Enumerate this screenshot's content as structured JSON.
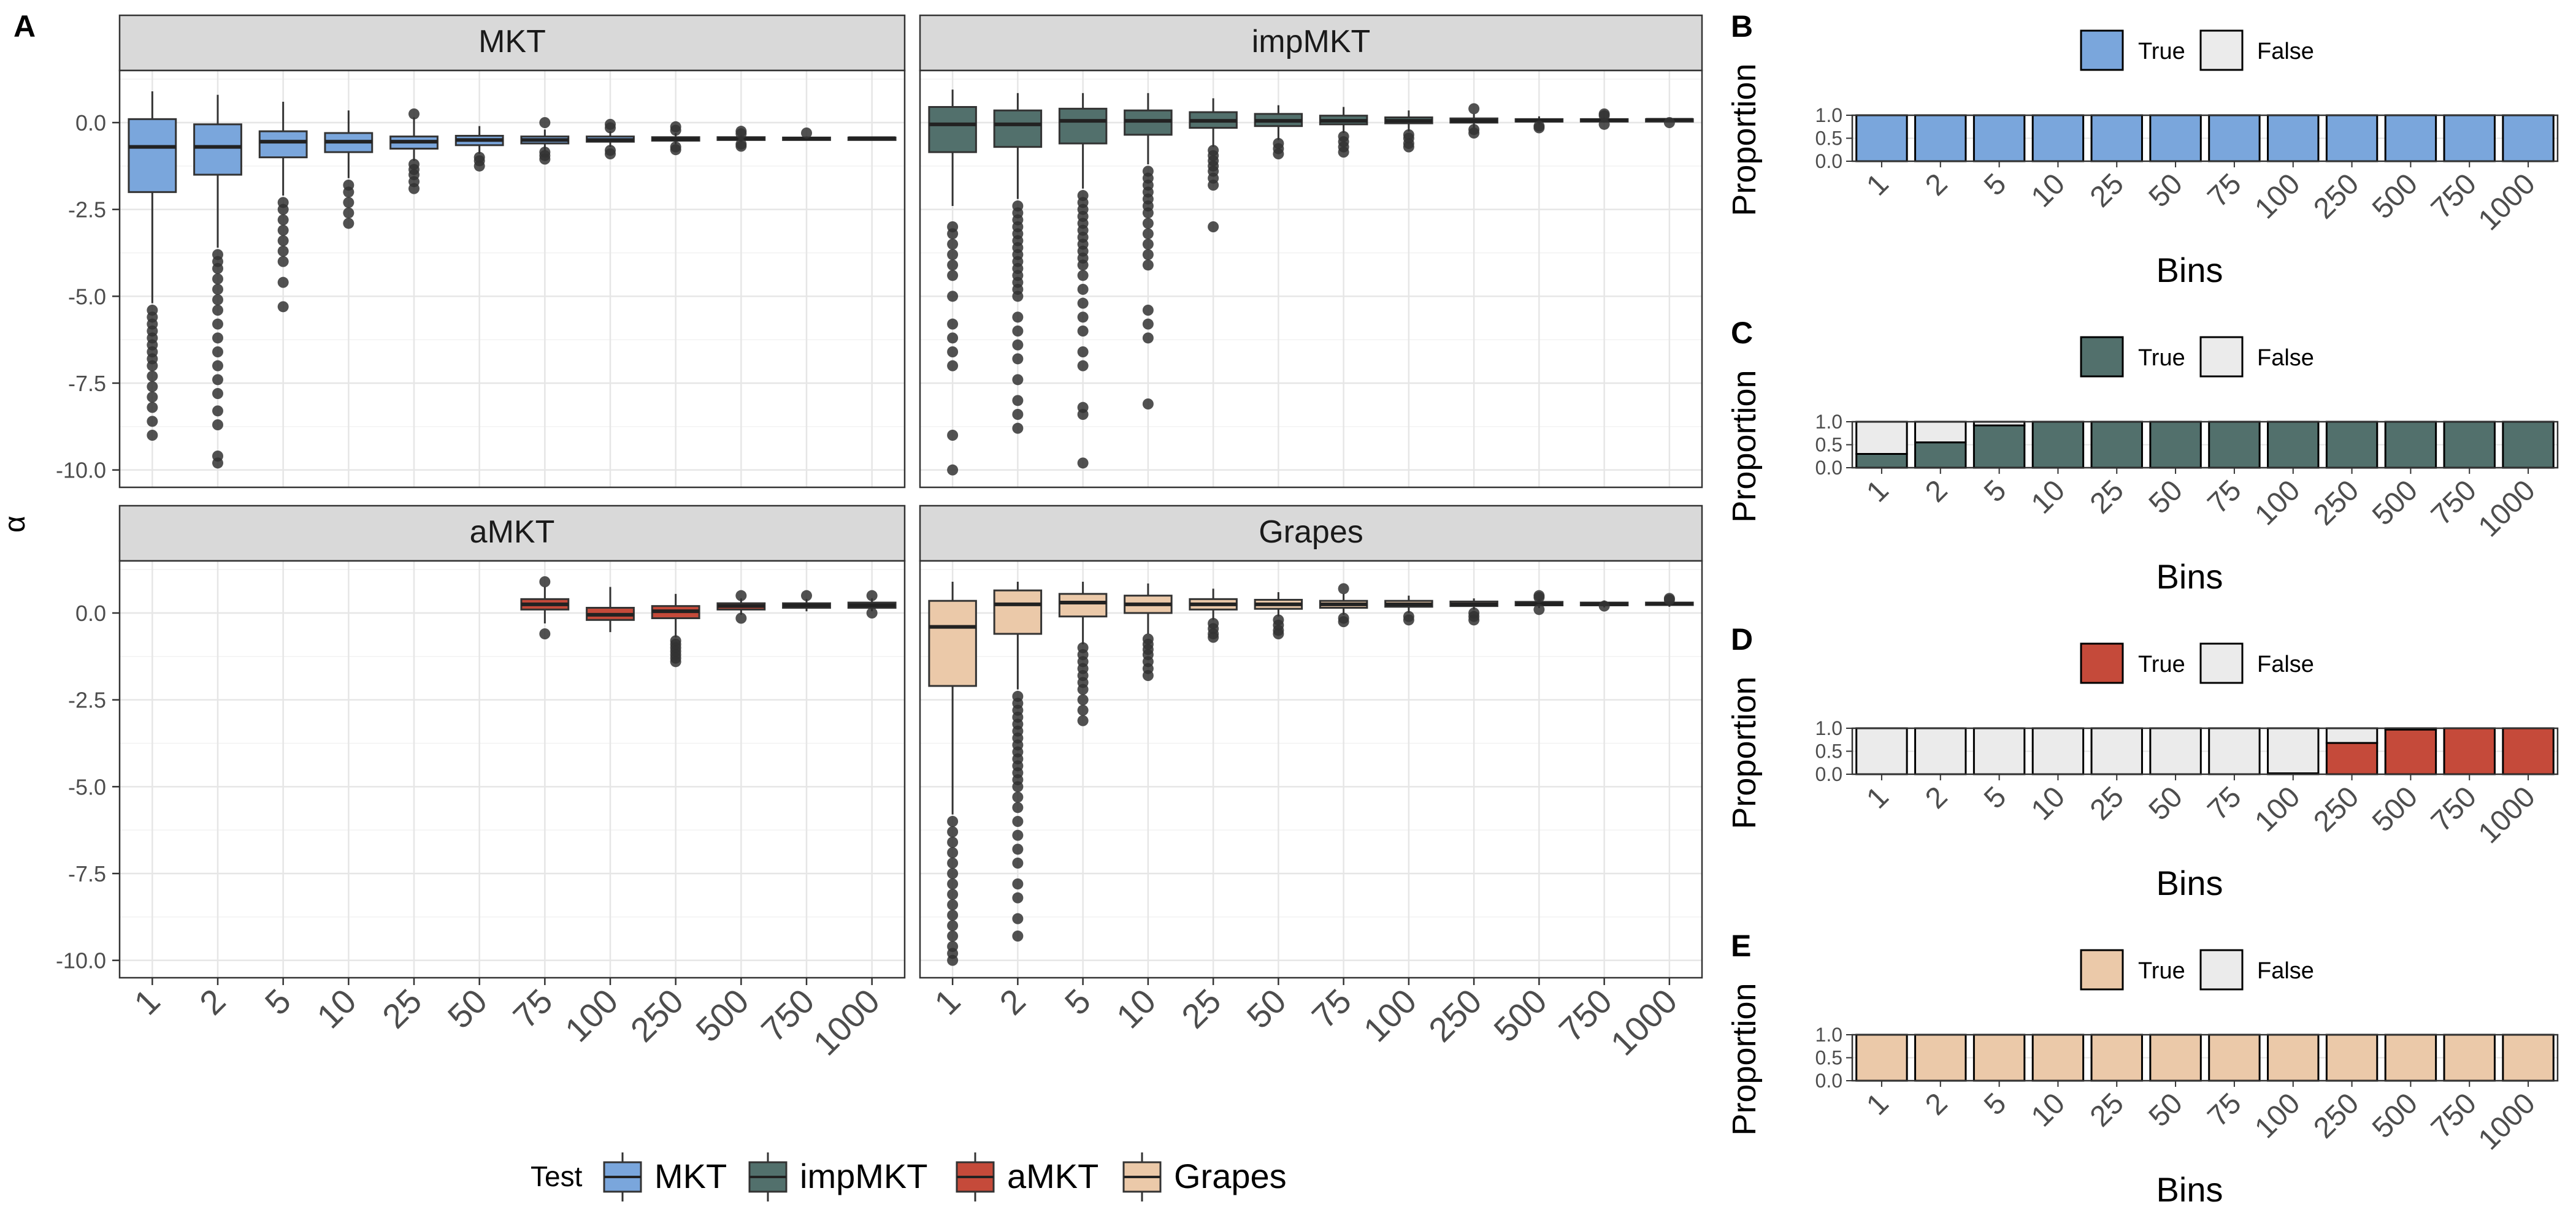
{
  "colors": {
    "MKT": "#7aa6dc",
    "impMKT": "#52706c",
    "aMKT": "#c54a3a",
    "Grapes": "#ebc9a9",
    "false_fill": "#ebebeb",
    "strip_bg": "#d9d9d9"
  },
  "panel_letters": {
    "A": "A",
    "B": "B",
    "C": "C",
    "D": "D",
    "E": "E"
  },
  "legend": {
    "title": "Test",
    "items": [
      "MKT",
      "impMKT",
      "aMKT",
      "Grapes"
    ]
  },
  "chart_data": [
    {
      "type": "box",
      "panel": "A",
      "ylabel": "α",
      "xlabel": "",
      "ylim": [
        -10.5,
        1.5
      ],
      "yticks": [
        -10.0,
        -7.5,
        -5.0,
        -2.5,
        0.0
      ],
      "ytick_labels": [
        "-10.0",
        "-7.5",
        "-5.0",
        "-2.5",
        "0.0"
      ],
      "categories": [
        "1",
        "2",
        "5",
        "10",
        "25",
        "50",
        "75",
        "100",
        "250",
        "500",
        "750",
        "1000"
      ],
      "facets": [
        {
          "name": "MKT",
          "boxes": [
            {
              "q1": -2.0,
              "median": -0.7,
              "q3": 0.1,
              "wlo": -5.2,
              "whi": 0.9,
              "out": [
                -5.4,
                -5.6,
                -5.8,
                -6.0,
                -6.2,
                -6.4,
                -6.6,
                -6.8,
                -7.0,
                -7.3,
                -7.6,
                -7.9,
                -8.2,
                -8.6,
                -9.0
              ]
            },
            {
              "q1": -1.5,
              "median": -0.7,
              "q3": -0.05,
              "wlo": -3.6,
              "whi": 0.8,
              "out": [
                -3.8,
                -4.0,
                -4.2,
                -4.5,
                -4.8,
                -5.1,
                -5.4,
                -5.8,
                -6.2,
                -6.6,
                -7.0,
                -7.4,
                -7.8,
                -8.3,
                -8.7,
                -9.6,
                -9.8
              ]
            },
            {
              "q1": -1.0,
              "median": -0.55,
              "q3": -0.25,
              "wlo": -2.1,
              "whi": 0.6,
              "out": [
                -2.3,
                -2.5,
                -2.8,
                -3.1,
                -3.4,
                -3.7,
                -4.0,
                -4.6,
                -5.3
              ]
            },
            {
              "q1": -0.85,
              "median": -0.55,
              "q3": -0.3,
              "wlo": -1.6,
              "whi": 0.35,
              "out": [
                -1.8,
                -2.0,
                -2.3,
                -2.6,
                -2.9
              ]
            },
            {
              "q1": -0.75,
              "median": -0.55,
              "q3": -0.4,
              "wlo": -1.1,
              "whi": 0.15,
              "out": [
                -1.2,
                -1.35,
                -1.5,
                -1.7,
                -1.9,
                0.25
              ]
            },
            {
              "q1": -0.65,
              "median": -0.5,
              "q3": -0.38,
              "wlo": -0.9,
              "whi": -0.1,
              "out": [
                -1.0,
                -1.1,
                -1.25
              ]
            },
            {
              "q1": -0.6,
              "median": -0.5,
              "q3": -0.4,
              "wlo": -0.8,
              "whi": -0.2,
              "out": [
                -0.85,
                -0.95,
                -1.05,
                0.0
              ]
            },
            {
              "q1": -0.55,
              "median": -0.5,
              "q3": -0.4,
              "wlo": -0.7,
              "whi": -0.25,
              "out": [
                -0.8,
                -0.9,
                -0.15,
                -0.05
              ]
            },
            {
              "q1": -0.52,
              "median": -0.47,
              "q3": -0.42,
              "wlo": -0.62,
              "whi": -0.3,
              "out": [
                -0.7,
                -0.78,
                -0.22,
                -0.12
              ]
            },
            {
              "q1": -0.5,
              "median": -0.46,
              "q3": -0.42,
              "wlo": -0.56,
              "whi": -0.36,
              "out": [
                -0.62,
                -0.68,
                -0.32,
                -0.25
              ]
            },
            {
              "q1": -0.48,
              "median": -0.46,
              "q3": -0.43,
              "wlo": -0.52,
              "whi": -0.4,
              "out": [
                -0.3
              ]
            },
            {
              "q1": -0.47,
              "median": -0.45,
              "q3": -0.43,
              "wlo": -0.5,
              "whi": -0.41,
              "out": []
            }
          ]
        },
        {
          "name": "impMKT",
          "boxes": [
            {
              "q1": -0.85,
              "median": -0.05,
              "q3": 0.45,
              "wlo": -2.4,
              "whi": 0.95,
              "out": [
                -3.0,
                -3.2,
                -3.5,
                -3.8,
                -4.1,
                -4.4,
                -5.0,
                -5.8,
                -6.2,
                -6.6,
                -7.0,
                -9.0,
                -10.0
              ]
            },
            {
              "q1": -0.7,
              "median": -0.05,
              "q3": 0.35,
              "wlo": -2.2,
              "whi": 0.85,
              "out": [
                -2.4,
                -2.6,
                -2.8,
                -3.0,
                -3.2,
                -3.4,
                -3.6,
                -3.8,
                -4.0,
                -4.2,
                -4.4,
                -4.6,
                -4.8,
                -5.0,
                -5.6,
                -6.0,
                -6.4,
                -6.8,
                -7.4,
                -8.0,
                -8.4,
                -8.8
              ]
            },
            {
              "q1": -0.6,
              "median": 0.05,
              "q3": 0.4,
              "wlo": -1.9,
              "whi": 0.85,
              "out": [
                -2.1,
                -2.3,
                -2.5,
                -2.7,
                -2.9,
                -3.1,
                -3.3,
                -3.5,
                -3.7,
                -3.9,
                -4.1,
                -4.4,
                -4.8,
                -5.2,
                -5.6,
                -6.0,
                -6.6,
                -7.0,
                -8.2,
                -8.4,
                -9.8
              ]
            },
            {
              "q1": -0.35,
              "median": 0.05,
              "q3": 0.35,
              "wlo": -1.2,
              "whi": 0.85,
              "out": [
                -1.4,
                -1.6,
                -1.8,
                -2.0,
                -2.2,
                -2.4,
                -2.6,
                -2.9,
                -3.2,
                -3.5,
                -3.8,
                -4.1,
                -5.4,
                -5.8,
                -6.2,
                -8.1
              ]
            },
            {
              "q1": -0.15,
              "median": 0.05,
              "q3": 0.3,
              "wlo": -0.7,
              "whi": 0.7,
              "out": [
                -0.8,
                -0.95,
                -1.1,
                -1.25,
                -1.4,
                -1.6,
                -1.8,
                -3.0
              ]
            },
            {
              "q1": -0.1,
              "median": 0.05,
              "q3": 0.25,
              "wlo": -0.5,
              "whi": 0.5,
              "out": [
                -0.6,
                -0.75,
                -0.9
              ]
            },
            {
              "q1": -0.05,
              "median": 0.05,
              "q3": 0.2,
              "wlo": -0.3,
              "whi": 0.45,
              "out": [
                -0.4,
                -0.55,
                -0.7,
                -0.85
              ]
            },
            {
              "q1": -0.02,
              "median": 0.05,
              "q3": 0.15,
              "wlo": -0.25,
              "whi": 0.35,
              "out": [
                -0.35,
                -0.45,
                -0.6,
                -0.7
              ]
            },
            {
              "q1": 0.0,
              "median": 0.05,
              "q3": 0.12,
              "wlo": -0.15,
              "whi": 0.25,
              "out": [
                -0.2,
                -0.3,
                0.4
              ]
            },
            {
              "q1": 0.03,
              "median": 0.06,
              "q3": 0.1,
              "wlo": -0.05,
              "whi": 0.18,
              "out": [
                -0.1,
                -0.15
              ]
            },
            {
              "q1": 0.04,
              "median": 0.07,
              "q3": 0.1,
              "wlo": 0.0,
              "whi": 0.15,
              "out": [
                -0.05,
                0.25,
                0.2
              ]
            },
            {
              "q1": 0.06,
              "median": 0.08,
              "q3": 0.1,
              "wlo": 0.03,
              "whi": 0.13,
              "out": [
                0.0
              ]
            }
          ]
        },
        {
          "name": "aMKT",
          "boxes": [
            null,
            null,
            null,
            null,
            null,
            null,
            {
              "q1": 0.1,
              "median": 0.25,
              "q3": 0.4,
              "wlo": -0.3,
              "whi": 0.75,
              "out": [
                -0.6,
                0.9
              ]
            },
            {
              "q1": -0.2,
              "median": -0.05,
              "q3": 0.15,
              "wlo": -0.55,
              "whi": 0.75,
              "out": []
            },
            {
              "q1": -0.15,
              "median": 0.05,
              "q3": 0.2,
              "wlo": -0.7,
              "whi": 0.55,
              "out": [
                -0.8,
                -0.9,
                -1.0,
                -1.1,
                -1.2,
                -1.3,
                -1.4
              ]
            },
            {
              "q1": 0.1,
              "median": 0.2,
              "q3": 0.28,
              "wlo": -0.05,
              "whi": 0.42,
              "out": [
                -0.15,
                0.5
              ]
            },
            {
              "q1": 0.15,
              "median": 0.22,
              "q3": 0.28,
              "wlo": 0.05,
              "whi": 0.4,
              "out": [
                0.5
              ]
            },
            {
              "q1": 0.15,
              "median": 0.22,
              "q3": 0.3,
              "wlo": 0.05,
              "whi": 0.42,
              "out": [
                0.5,
                0.0
              ]
            }
          ]
        },
        {
          "name": "Grapes",
          "boxes": [
            {
              "q1": -2.1,
              "median": -0.4,
              "q3": 0.35,
              "wlo": -5.8,
              "whi": 0.9,
              "out": [
                -6.0,
                -6.3,
                -6.6,
                -6.9,
                -7.2,
                -7.5,
                -7.8,
                -8.1,
                -8.4,
                -8.7,
                -9.0,
                -9.3,
                -9.6,
                -9.8,
                -10.0
              ]
            },
            {
              "q1": -0.6,
              "median": 0.25,
              "q3": 0.65,
              "wlo": -2.2,
              "whi": 0.9,
              "out": [
                -2.4,
                -2.6,
                -2.8,
                -3.0,
                -3.2,
                -3.4,
                -3.6,
                -3.8,
                -4.0,
                -4.2,
                -4.4,
                -4.6,
                -4.8,
                -5.0,
                -5.3,
                -5.6,
                -6.0,
                -6.4,
                -6.8,
                -7.2,
                -7.8,
                -8.2,
                -8.8,
                -9.3
              ]
            },
            {
              "q1": -0.1,
              "median": 0.3,
              "q3": 0.55,
              "wlo": -0.9,
              "whi": 0.9,
              "out": [
                -1.0,
                -1.2,
                -1.4,
                -1.6,
                -1.8,
                -2.0,
                -2.2,
                -2.5,
                -2.8,
                -3.1
              ]
            },
            {
              "q1": 0.0,
              "median": 0.25,
              "q3": 0.5,
              "wlo": -0.6,
              "whi": 0.85,
              "out": [
                -0.75,
                -0.9,
                -1.05,
                -1.2,
                -1.4,
                -1.6,
                -1.8
              ]
            },
            {
              "q1": 0.1,
              "median": 0.25,
              "q3": 0.4,
              "wlo": -0.2,
              "whi": 0.7,
              "out": [
                -0.3,
                -0.45,
                -0.6,
                -0.7
              ]
            },
            {
              "q1": 0.12,
              "median": 0.25,
              "q3": 0.38,
              "wlo": -0.1,
              "whi": 0.6,
              "out": [
                -0.2,
                -0.35,
                -0.5,
                -0.6
              ]
            },
            {
              "q1": 0.15,
              "median": 0.25,
              "q3": 0.35,
              "wlo": -0.05,
              "whi": 0.55,
              "out": [
                -0.15,
                -0.25,
                0.7
              ]
            },
            {
              "q1": 0.18,
              "median": 0.25,
              "q3": 0.35,
              "wlo": 0.0,
              "whi": 0.5,
              "out": [
                -0.1,
                -0.2
              ]
            },
            {
              "q1": 0.2,
              "median": 0.25,
              "q3": 0.33,
              "wlo": 0.1,
              "whi": 0.42,
              "out": [
                0.0,
                -0.1,
                -0.2
              ]
            },
            {
              "q1": 0.22,
              "median": 0.26,
              "q3": 0.32,
              "wlo": 0.14,
              "whi": 0.4,
              "out": [
                0.45,
                0.5,
                0.1
              ]
            },
            {
              "q1": 0.22,
              "median": 0.26,
              "q3": 0.3,
              "wlo": 0.16,
              "whi": 0.36,
              "out": [
                0.2
              ]
            },
            {
              "q1": 0.23,
              "median": 0.27,
              "q3": 0.3,
              "wlo": 0.18,
              "whi": 0.34,
              "out": [
                0.42,
                0.38
              ]
            }
          ]
        }
      ]
    },
    {
      "type": "bar",
      "panel": "B",
      "test": "MKT",
      "stacked": true,
      "xlabel": "Bins",
      "ylabel": "Proportion",
      "ylim": [
        0,
        1
      ],
      "ytick_labels": [
        "0.0",
        "0.5",
        "1.0"
      ],
      "legend_labels": [
        "True",
        "False"
      ],
      "categories": [
        "1",
        "2",
        "5",
        "10",
        "25",
        "50",
        "75",
        "100",
        "250",
        "500",
        "750",
        "1000"
      ],
      "true_values": [
        1,
        1,
        1,
        1,
        1,
        1,
        1,
        1,
        1,
        1,
        1,
        1
      ]
    },
    {
      "type": "bar",
      "panel": "C",
      "test": "impMKT",
      "stacked": true,
      "xlabel": "Bins",
      "ylabel": "Proportion",
      "ylim": [
        0,
        1
      ],
      "ytick_labels": [
        "0.0",
        "0.5",
        "1.0"
      ],
      "legend_labels": [
        "True",
        "False"
      ],
      "categories": [
        "1",
        "2",
        "5",
        "10",
        "25",
        "50",
        "75",
        "100",
        "250",
        "500",
        "750",
        "1000"
      ],
      "true_values": [
        0.3,
        0.55,
        0.92,
        1,
        1,
        1,
        1,
        1,
        1,
        1,
        1,
        1
      ]
    },
    {
      "type": "bar",
      "panel": "D",
      "test": "aMKT",
      "stacked": true,
      "xlabel": "Bins",
      "ylabel": "Proportion",
      "ylim": [
        0,
        1
      ],
      "ytick_labels": [
        "0.0",
        "0.5",
        "1.0"
      ],
      "legend_labels": [
        "True",
        "False"
      ],
      "categories": [
        "1",
        "2",
        "5",
        "10",
        "25",
        "50",
        "75",
        "100",
        "250",
        "500",
        "750",
        "1000"
      ],
      "true_values": [
        0,
        0,
        0,
        0,
        0,
        0,
        0,
        0.02,
        0.68,
        0.97,
        1,
        1
      ]
    },
    {
      "type": "bar",
      "panel": "E",
      "test": "Grapes",
      "stacked": true,
      "xlabel": "Bins",
      "ylabel": "Proportion",
      "ylim": [
        0,
        1
      ],
      "ytick_labels": [
        "0.0",
        "0.5",
        "1.0"
      ],
      "legend_labels": [
        "True",
        "False"
      ],
      "categories": [
        "1",
        "2",
        "5",
        "10",
        "25",
        "50",
        "75",
        "100",
        "250",
        "500",
        "750",
        "1000"
      ],
      "true_values": [
        1,
        1,
        1,
        1,
        1,
        1,
        1,
        1,
        1,
        1,
        1,
        1
      ]
    }
  ]
}
